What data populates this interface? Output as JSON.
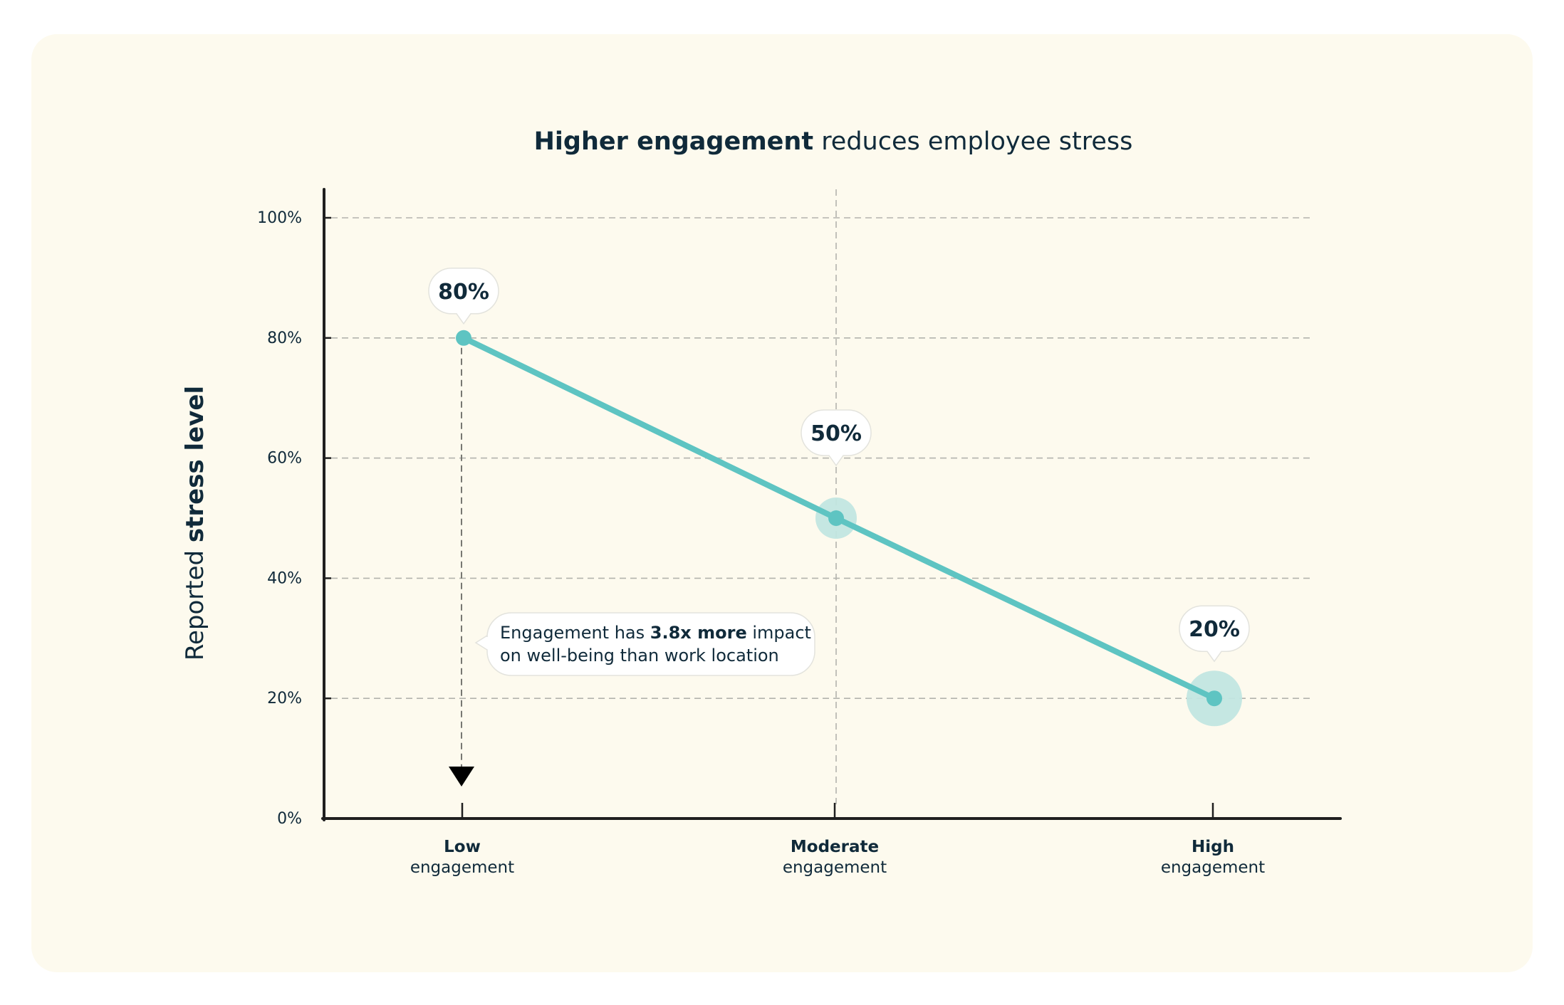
{
  "chart_data": {
    "type": "line",
    "title": {
      "bold": "Higher engagement",
      "regular": " reduces employee stress"
    },
    "ylabel": {
      "regular": "Reported ",
      "bold": "stress level"
    },
    "xlabel": "",
    "categories": [
      {
        "bold": "Low",
        "regular": "engagement"
      },
      {
        "bold": "Moderate",
        "regular": "engagement"
      },
      {
        "bold": "High",
        "regular": "engagement"
      }
    ],
    "series": [
      {
        "name": "Reported stress level",
        "values": [
          80,
          50,
          20
        ],
        "color": "#5ec4c2"
      }
    ],
    "data_labels": [
      "80%",
      "50%",
      "20%"
    ],
    "ylim": [
      0,
      100
    ],
    "yticks": [
      0,
      20,
      40,
      60,
      80,
      100
    ],
    "ytick_labels": [
      "0%",
      "20%",
      "40%",
      "60%",
      "80%",
      "100%"
    ],
    "grid": true,
    "annotation": {
      "line1_regular": "Engagement has ",
      "line1_bold": "3.8x more",
      "line1_tail": " impact",
      "line2": "on well-being than work location",
      "anchor_category": "Low",
      "arrow": "down"
    },
    "colors": {
      "line": "#5ec4c2",
      "halo": "#c2e6e0",
      "text": "#102a3a",
      "axis": "#1f1f1f",
      "grid": "#b3b3ad",
      "background": "#fdfaee"
    }
  }
}
